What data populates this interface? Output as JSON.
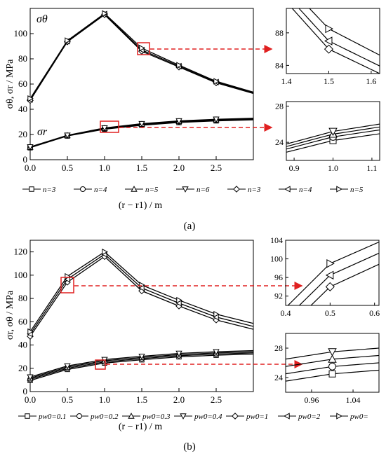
{
  "chart_data": [
    {
      "type": "line",
      "panel_label": "(a)",
      "ylabel": "σθ, σr / MPa",
      "xlabel": "(r − r1) / m",
      "xlim": [
        0,
        3.0
      ],
      "ylim": [
        0,
        120
      ],
      "xticks": [
        "0.0",
        "0.5",
        "1.0",
        "1.5",
        "2.0",
        "2.5"
      ],
      "yticks": [
        "0",
        "20",
        "40",
        "60",
        "80",
        "100"
      ],
      "annotations": [
        "σθ",
        "σr"
      ],
      "legend_placement": "bottom",
      "x": [
        0,
        0.5,
        1.0,
        1.5,
        2.0,
        2.5,
        3.0
      ],
      "series": [
        {
          "name": "n=3",
          "marker": "square",
          "values": [
            9.5,
            18.8,
            24.2,
            27.3,
            29.5,
            30.8,
            31.6
          ]
        },
        {
          "name": "n=4",
          "marker": "circle",
          "values": [
            9.8,
            19.0,
            24.6,
            27.8,
            30.0,
            31.3,
            32.1
          ]
        },
        {
          "name": "n=5",
          "marker": "triangle-up",
          "values": [
            10.0,
            19.2,
            24.9,
            28.2,
            30.4,
            31.7,
            32.5
          ]
        },
        {
          "name": "n=6",
          "marker": "triangle-down",
          "values": [
            10.2,
            19.4,
            25.2,
            28.6,
            30.8,
            32.1,
            32.9
          ]
        },
        {
          "name": "n=3",
          "marker": "diamond",
          "values": [
            47.0,
            93.5,
            115.0,
            86.0,
            73.5,
            61.0,
            52.5
          ]
        },
        {
          "name": "n=4",
          "marker": "triangle-left",
          "values": [
            47.8,
            94.0,
            115.5,
            87.0,
            74.2,
            61.6,
            53.0
          ]
        },
        {
          "name": "n=5",
          "marker": "triangle-right",
          "values": [
            48.5,
            94.5,
            116.0,
            88.5,
            75.0,
            62.2,
            53.6
          ]
        }
      ],
      "insets": [
        {
          "xlim": [
            1.4,
            1.62
          ],
          "ylim": [
            83,
            91
          ],
          "xticks": [
            "1.4",
            "1.5",
            "1.6"
          ],
          "yticks": [
            "84",
            "88"
          ]
        },
        {
          "xlim": [
            0.88,
            1.12
          ],
          "ylim": [
            22,
            28.5
          ],
          "xticks": [
            "0.9",
            "1.0",
            "1.1"
          ],
          "yticks": [
            "24",
            "28"
          ]
        }
      ]
    },
    {
      "type": "line",
      "panel_label": "(b)",
      "ylabel": "σr, σθ / MPa",
      "xlabel": "(r − r1) / m",
      "xlim": [
        0,
        3.0
      ],
      "ylim": [
        0,
        130
      ],
      "xticks": [
        "0.0",
        "0.5",
        "1.0",
        "1.5",
        "2.0",
        "2.5"
      ],
      "yticks": [
        "0",
        "20",
        "40",
        "60",
        "80",
        "100",
        "120"
      ],
      "legend_placement": "bottom",
      "x": [
        0,
        0.5,
        1.0,
        1.5,
        2.0,
        2.5,
        3.0
      ],
      "series": [
        {
          "name": "pw0=0.1",
          "marker": "square",
          "values": [
            9.5,
            19.0,
            24.5,
            27.3,
            29.8,
            31.2,
            32.2
          ]
        },
        {
          "name": "pw0=0.2",
          "marker": "circle",
          "values": [
            10.5,
            20.0,
            25.5,
            28.3,
            30.8,
            32.2,
            33.2
          ]
        },
        {
          "name": "pw0=0.3",
          "marker": "triangle-up",
          "values": [
            11.5,
            21.0,
            26.5,
            29.3,
            31.8,
            33.2,
            34.2
          ]
        },
        {
          "name": "pw0=0.4",
          "marker": "triangle-down",
          "values": [
            12.5,
            22.0,
            27.5,
            30.3,
            32.8,
            34.2,
            35.2
          ]
        },
        {
          "name": "pw0=1",
          "marker": "diamond",
          "values": [
            47.5,
            94.0,
            116.0,
            86.5,
            73.5,
            61.5,
            53.5
          ]
        },
        {
          "name": "pw0=2",
          "marker": "triangle-left",
          "values": [
            49.5,
            96.5,
            118.0,
            89.0,
            76.0,
            64.0,
            56.0
          ]
        },
        {
          "name": "pw0=",
          "marker": "triangle-right",
          "values": [
            51.5,
            99.0,
            120.0,
            91.5,
            78.5,
            66.5,
            58.5
          ]
        }
      ],
      "insets": [
        {
          "xlim": [
            0.4,
            0.61
          ],
          "ylim": [
            90,
            104
          ],
          "xticks": [
            "0.4",
            "0.5",
            "0.6"
          ],
          "yticks": [
            "92",
            "96",
            "100",
            "104"
          ]
        },
        {
          "xlim": [
            0.91,
            1.09
          ],
          "ylim": [
            22,
            30
          ],
          "xticks": [
            "0.96",
            "1.04"
          ],
          "yticks": [
            "24",
            "28"
          ]
        }
      ]
    }
  ]
}
